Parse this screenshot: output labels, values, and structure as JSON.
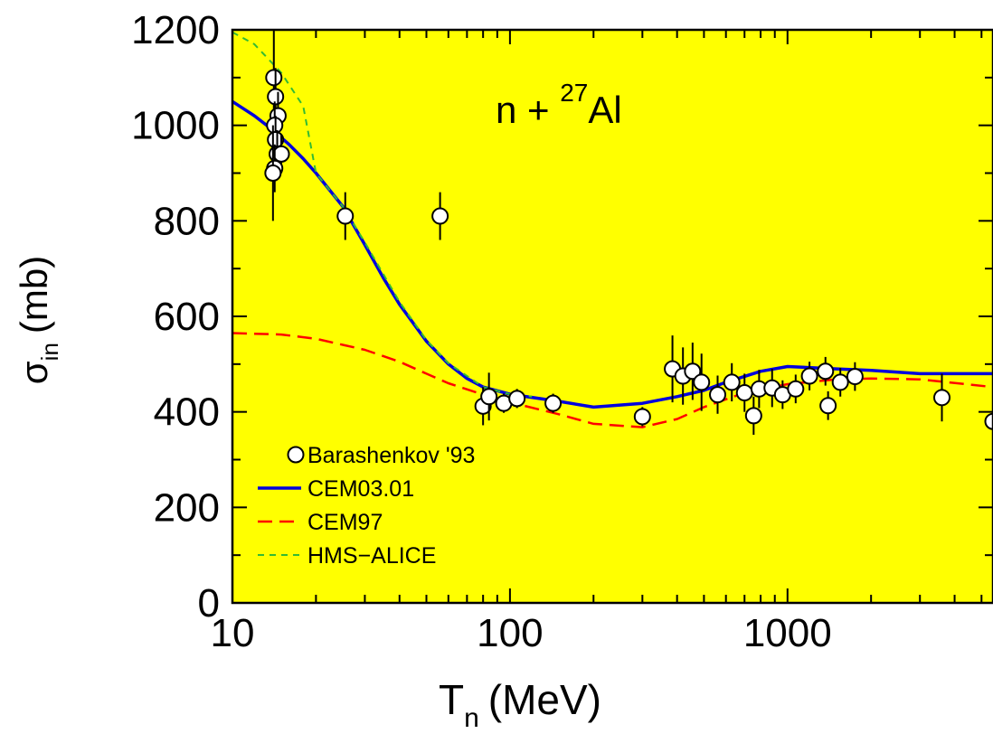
{
  "chart_data": {
    "type": "line",
    "title": "",
    "annotation": {
      "prefix": "n + ",
      "sup": "27",
      "suffix": "Al"
    },
    "xlabel": {
      "main": "T",
      "sub": "n",
      "unit": "(MeV)"
    },
    "ylabel": {
      "main": "σ",
      "sub": "in",
      "unit": "(mb)"
    },
    "xscale": "log",
    "xlim": [
      10,
      5500
    ],
    "ylim": [
      0,
      1200
    ],
    "xticks": [
      {
        "value": 10,
        "label": "10"
      },
      {
        "value": 100,
        "label": "100"
      },
      {
        "value": 1000,
        "label": "1000"
      }
    ],
    "yticks": [
      {
        "value": 0,
        "label": "0"
      },
      {
        "value": 200,
        "label": "200"
      },
      {
        "value": 400,
        "label": "400"
      },
      {
        "value": 600,
        "label": "600"
      },
      {
        "value": 800,
        "label": "800"
      },
      {
        "value": 1000,
        "label": "1000"
      },
      {
        "value": 1200,
        "label": "1200"
      }
    ],
    "background_color": "#ffff00",
    "grid": false,
    "legend_position": "bottom-left",
    "points": {
      "name": "Barashenkov '93",
      "data": [
        {
          "x": 14.1,
          "y": 1100,
          "err": 100
        },
        {
          "x": 14.3,
          "y": 1060,
          "err": 60
        },
        {
          "x": 14.6,
          "y": 1020,
          "err": 50
        },
        {
          "x": 14.2,
          "y": 1000,
          "err": 50
        },
        {
          "x": 14.3,
          "y": 970,
          "err": 50
        },
        {
          "x": 14.5,
          "y": 940,
          "err": 50
        },
        {
          "x": 15.0,
          "y": 940,
          "err": 40
        },
        {
          "x": 14.2,
          "y": 910,
          "err": 50
        },
        {
          "x": 14.0,
          "y": 900,
          "err": 100
        },
        {
          "x": 25.5,
          "y": 810,
          "err": 50
        },
        {
          "x": 56,
          "y": 810,
          "err": 50
        },
        {
          "x": 80,
          "y": 412,
          "err": 40
        },
        {
          "x": 84,
          "y": 432,
          "err": 50
        },
        {
          "x": 95,
          "y": 418,
          "err": 20
        },
        {
          "x": 106,
          "y": 428,
          "err": 20
        },
        {
          "x": 143,
          "y": 418,
          "err": 20
        },
        {
          "x": 300,
          "y": 390,
          "err": 20
        },
        {
          "x": 385,
          "y": 490,
          "err": 70
        },
        {
          "x": 420,
          "y": 475,
          "err": 60
        },
        {
          "x": 455,
          "y": 485,
          "err": 60
        },
        {
          "x": 490,
          "y": 462,
          "err": 60
        },
        {
          "x": 560,
          "y": 436,
          "err": 40
        },
        {
          "x": 630,
          "y": 462,
          "err": 40
        },
        {
          "x": 700,
          "y": 440,
          "err": 40
        },
        {
          "x": 755,
          "y": 392,
          "err": 40
        },
        {
          "x": 790,
          "y": 448,
          "err": 40
        },
        {
          "x": 880,
          "y": 450,
          "err": 40
        },
        {
          "x": 960,
          "y": 436,
          "err": 30
        },
        {
          "x": 1070,
          "y": 448,
          "err": 30
        },
        {
          "x": 1200,
          "y": 475,
          "err": 30
        },
        {
          "x": 1370,
          "y": 485,
          "err": 30
        },
        {
          "x": 1400,
          "y": 413,
          "err": 30
        },
        {
          "x": 1550,
          "y": 462,
          "err": 30
        },
        {
          "x": 1750,
          "y": 474,
          "err": 30
        },
        {
          "x": 3600,
          "y": 430,
          "err": 50
        },
        {
          "x": 5500,
          "y": 380,
          "err": 30
        }
      ]
    },
    "series": [
      {
        "name": "CEM03.01",
        "color": "#0000dd",
        "dash": "solid",
        "x": [
          10,
          12,
          14,
          16,
          18,
          20,
          25,
          30,
          35,
          40,
          50,
          60,
          70,
          80,
          100,
          150,
          200,
          300,
          400,
          500,
          600,
          800,
          1000,
          1500,
          2000,
          3000,
          5500
        ],
        "y": [
          1050,
          1020,
          990,
          960,
          930,
          900,
          830,
          750,
          680,
          625,
          548,
          500,
          470,
          452,
          437,
          422,
          410,
          418,
          432,
          445,
          462,
          485,
          495,
          490,
          487,
          480,
          480
        ]
      },
      {
        "name": "CEM97",
        "color": "#ff0000",
        "dash": "long",
        "x": [
          10,
          15,
          20,
          30,
          40,
          50,
          60,
          80,
          100,
          150,
          200,
          300,
          400,
          500,
          700,
          1000,
          1500,
          2000,
          3000,
          5500
        ],
        "y": [
          565,
          562,
          553,
          530,
          505,
          480,
          460,
          436,
          420,
          395,
          375,
          368,
          385,
          410,
          440,
          458,
          468,
          470,
          468,
          452
        ]
      },
      {
        "name": "HMS−ALICE",
        "color": "#33bb33",
        "dash": "short",
        "x": [
          10,
          12,
          15,
          18,
          20,
          25,
          30,
          40,
          50,
          60,
          80,
          100,
          120
        ],
        "y": [
          1195,
          1170,
          1110,
          1040,
          900,
          830,
          755,
          630,
          550,
          502,
          452,
          437,
          432
        ]
      }
    ]
  }
}
